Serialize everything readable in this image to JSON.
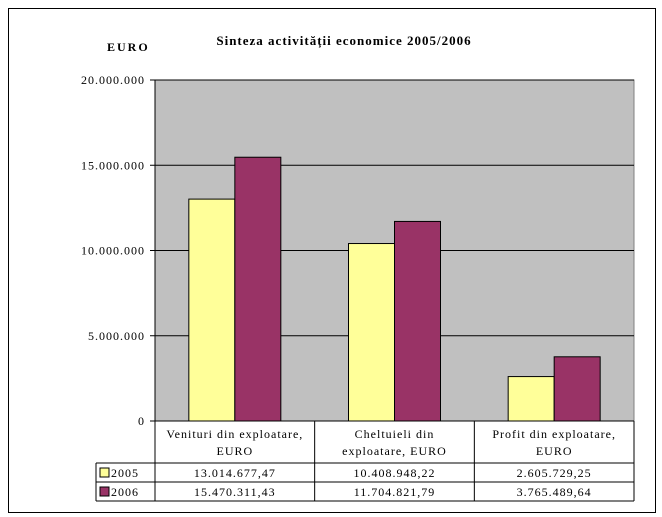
{
  "chart_data": {
    "type": "bar",
    "title": "Sinteza activității economice 2005/2006",
    "ylabel": "EURO",
    "ylim": [
      0,
      20000000
    ],
    "yticks": [
      "0",
      "5.000.000",
      "10.000.000",
      "15.000.000",
      "20.000.000"
    ],
    "grid": true,
    "legend": "data-table",
    "categories": [
      [
        "Venituri din exploatare,",
        "EURO"
      ],
      [
        "Cheltuieli din",
        "exploatare, EURO"
      ],
      [
        "Profit din exploatare,",
        "EURO"
      ]
    ],
    "series": [
      {
        "name": "2005",
        "color": "#ffff99",
        "values": [
          13014677.47,
          10408948.22,
          2605729.25
        ],
        "labels": [
          "13.014.677,47",
          "10.408.948,22",
          "2.605.729,25"
        ]
      },
      {
        "name": "2006",
        "color": "#993366",
        "values": [
          15470311.43,
          11704821.79,
          3765489.64
        ],
        "labels": [
          "15.470.311,43",
          "11.704.821,79",
          "3.765.489,64"
        ]
      }
    ],
    "plot_background": "#c0c0c0"
  }
}
